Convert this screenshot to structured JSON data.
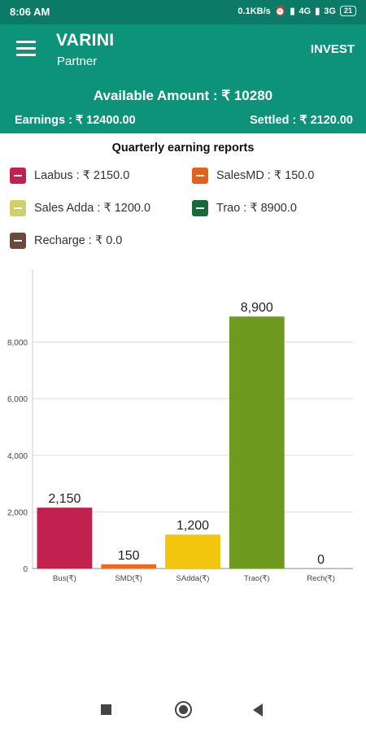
{
  "status_bar": {
    "time": "8:06 AM",
    "speed": "0.1KB/s",
    "net1": "4G",
    "net2": "3G",
    "battery": "21"
  },
  "app_bar": {
    "title": "VARINI",
    "subtitle": "Partner",
    "action": "INVEST"
  },
  "summary": {
    "available": "Available Amount : ₹ 10280",
    "earnings": "Earnings : ₹ 12400.00",
    "settled": "Settled : ₹ 2120.00"
  },
  "report_title": "Quarterly earning reports",
  "legend": [
    {
      "label": "Laabus : ₹ 2150.0",
      "color": "#c2204d"
    },
    {
      "label": "SalesMD : ₹ 150.0",
      "color": "#e0621e"
    },
    {
      "label": "Sales Adda : ₹ 1200.0",
      "color": "#cfd06a"
    },
    {
      "label": "Trao : ₹ 8900.0",
      "color": "#166b3b"
    },
    {
      "label": "Recharge : ₹ 0.0",
      "color": "#6b4a3a"
    }
  ],
  "chart_data": {
    "type": "bar",
    "categories": [
      "Bus(₹)",
      "SMD(₹)",
      "SAdda(₹)",
      "Trao(₹)",
      "Rech(₹)"
    ],
    "values": [
      2150,
      150,
      1200,
      8900,
      0
    ],
    "value_labels": [
      "2,150",
      "150",
      "1,200",
      "8,900",
      "0"
    ],
    "bar_colors": [
      "#c2204d",
      "#f06a1e",
      "#f2c60d",
      "#6e9a1f",
      "#6b4a3a"
    ],
    "y_ticks": [
      0,
      2000,
      4000,
      6000,
      8000
    ],
    "y_tick_labels": [
      "0",
      "2,000",
      "4,000",
      "6,000",
      "8,000"
    ],
    "ylim": [
      0,
      10600
    ],
    "grid": true
  }
}
